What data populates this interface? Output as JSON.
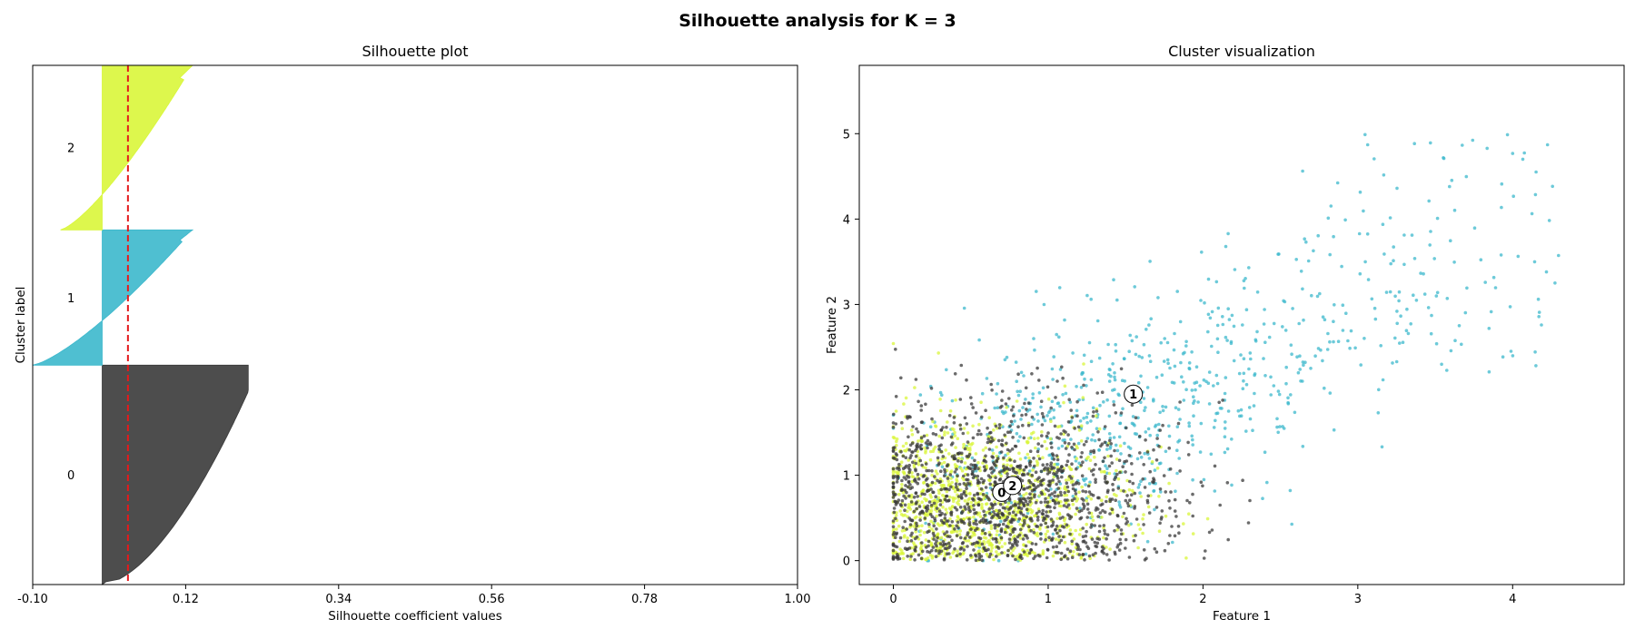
{
  "figure": {
    "title": "Silhouette analysis for K = 3"
  },
  "colors": {
    "cluster_0": "#3a3a3a",
    "cluster_1": "#3cb8cc",
    "cluster_2": "#d9f63a",
    "average_line": "#e41a1c"
  },
  "chart_data": [
    {
      "type": "area",
      "title": "Silhouette plot",
      "xlabel": "Silhouette coefficient values",
      "ylabel": "Cluster label",
      "xlim": [
        -0.1,
        1.0
      ],
      "x_ticks": [
        "-0.10",
        "0.12",
        "0.34",
        "0.56",
        "0.78",
        "1.00"
      ],
      "average_silhouette": 0.037,
      "clusters": [
        {
          "label": "0",
          "size": 6000,
          "max_value": 0.21,
          "min_value": 0.0
        },
        {
          "label": "1",
          "size": 3700,
          "max_value": 0.13,
          "min_value": -0.1
        },
        {
          "label": "2",
          "size": 4500,
          "max_value": 0.13,
          "min_value": -0.06
        }
      ]
    },
    {
      "type": "scatter",
      "title": "Cluster visualization",
      "xlabel": "Feature 1",
      "ylabel": "Feature 2",
      "xlim": [
        -0.22,
        4.72
      ],
      "ylim": [
        -0.28,
        5.8
      ],
      "x_ticks": [
        "0",
        "1",
        "2",
        "3",
        "4"
      ],
      "y_ticks": [
        "0",
        "1",
        "2",
        "3",
        "4",
        "5"
      ],
      "centers": [
        {
          "label": "0",
          "x": 0.7,
          "y": 0.8
        },
        {
          "label": "1",
          "x": 1.55,
          "y": 1.95
        },
        {
          "label": "2",
          "x": 0.77,
          "y": 0.88
        }
      ],
      "series": [
        {
          "label": "0",
          "approx_points": 1300,
          "mean": [
            0.75,
            0.75
          ],
          "spread": [
            0.55,
            0.55
          ]
        },
        {
          "label": "1",
          "approx_points": 750,
          "mean": [
            1.7,
            2.0
          ],
          "spread": [
            0.75,
            0.8
          ]
        },
        {
          "label": "2",
          "approx_points": 1100,
          "mean": [
            0.6,
            0.65
          ],
          "spread": [
            0.45,
            0.5
          ]
        }
      ]
    }
  ]
}
